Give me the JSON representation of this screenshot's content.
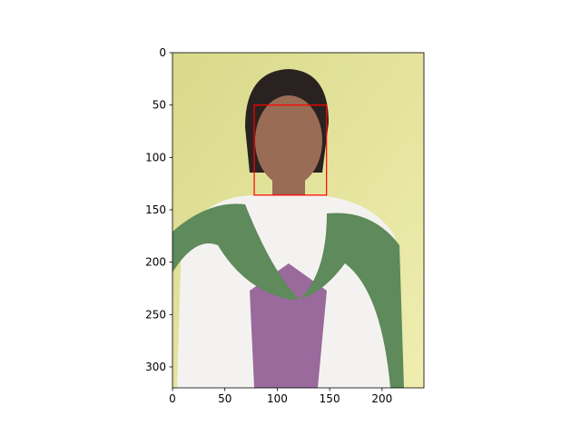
{
  "chart_data": {
    "type": "image",
    "xlim": [
      0,
      240
    ],
    "ylim": [
      320,
      0
    ],
    "xticks": [
      0,
      50,
      100,
      150,
      200
    ],
    "yticks": [
      0,
      50,
      100,
      150,
      200,
      250,
      300
    ],
    "boxes": [
      {
        "x0": 78,
        "y0": 50,
        "x1": 147,
        "y1": 136,
        "color": "#ff0000"
      }
    ]
  }
}
